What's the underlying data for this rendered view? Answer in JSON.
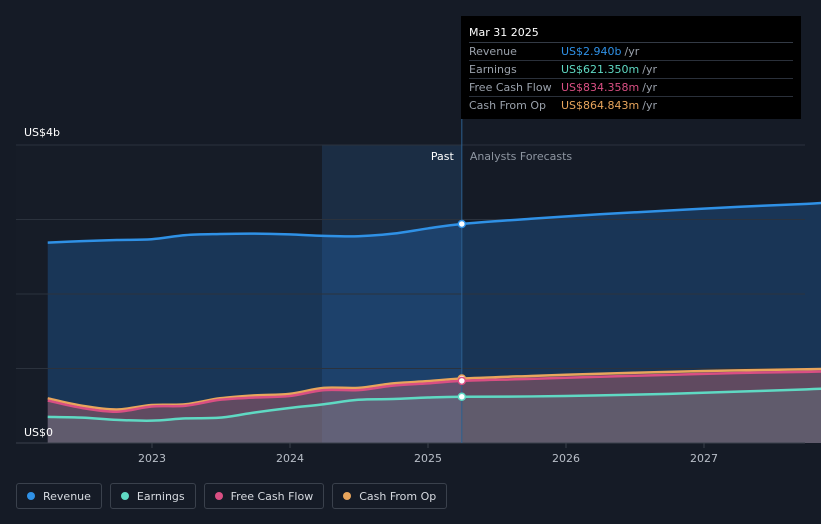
{
  "chart_data": {
    "type": "area",
    "y_axis": {
      "top_label": "US$4b",
      "bottom_label": "US$0",
      "ylim": [
        0,
        4000
      ]
    },
    "x_ticks": [
      "2023",
      "2024",
      "2025",
      "2026",
      "2027"
    ],
    "divider": {
      "past_label": "Past",
      "forecast_label": "Analysts Forecasts",
      "date": "2025-03-31"
    },
    "series": [
      {
        "name": "Revenue",
        "color": "#2f91e6",
        "points": [
          [
            "2022-03-31",
            2690
          ],
          [
            "2022-06-30",
            2710
          ],
          [
            "2022-09-30",
            2725
          ],
          [
            "2022-12-31",
            2735
          ],
          [
            "2023-03-31",
            2790
          ],
          [
            "2023-06-30",
            2805
          ],
          [
            "2023-09-30",
            2810
          ],
          [
            "2023-12-31",
            2800
          ],
          [
            "2024-03-31",
            2780
          ],
          [
            "2024-06-30",
            2775
          ],
          [
            "2024-09-30",
            2810
          ],
          [
            "2024-12-31",
            2880
          ],
          [
            "2025-03-31",
            2940
          ],
          [
            "2025-09-30",
            3010
          ],
          [
            "2026-03-31",
            3070
          ],
          [
            "2026-09-30",
            3120
          ],
          [
            "2027-03-31",
            3170
          ],
          [
            "2027-09-30",
            3210
          ],
          [
            "2027-12-31",
            3240
          ]
        ]
      },
      {
        "name": "Cash From Op",
        "color": "#e8a55c",
        "points": [
          [
            "2022-03-31",
            600
          ],
          [
            "2022-06-30",
            500
          ],
          [
            "2022-09-30",
            450
          ],
          [
            "2022-12-31",
            510
          ],
          [
            "2023-03-31",
            520
          ],
          [
            "2023-06-30",
            600
          ],
          [
            "2023-09-30",
            640
          ],
          [
            "2023-12-31",
            660
          ],
          [
            "2024-03-31",
            740
          ],
          [
            "2024-06-30",
            740
          ],
          [
            "2024-09-30",
            800
          ],
          [
            "2024-12-31",
            830
          ],
          [
            "2025-03-31",
            865
          ],
          [
            "2025-09-30",
            900
          ],
          [
            "2026-03-31",
            930
          ],
          [
            "2026-09-30",
            955
          ],
          [
            "2027-03-31",
            975
          ],
          [
            "2027-09-30",
            990
          ],
          [
            "2027-12-31",
            1000
          ]
        ]
      },
      {
        "name": "Free Cash Flow",
        "color": "#d94f83",
        "points": [
          [
            "2022-03-31",
            570
          ],
          [
            "2022-06-30",
            470
          ],
          [
            "2022-09-30",
            420
          ],
          [
            "2022-12-31",
            490
          ],
          [
            "2023-03-31",
            500
          ],
          [
            "2023-06-30",
            580
          ],
          [
            "2023-09-30",
            610
          ],
          [
            "2023-12-31",
            630
          ],
          [
            "2024-03-31",
            710
          ],
          [
            "2024-06-30",
            710
          ],
          [
            "2024-09-30",
            770
          ],
          [
            "2024-12-31",
            800
          ],
          [
            "2025-03-31",
            834
          ],
          [
            "2025-09-30",
            860
          ],
          [
            "2026-03-31",
            890
          ],
          [
            "2026-09-30",
            915
          ],
          [
            "2027-03-31",
            940
          ],
          [
            "2027-09-30",
            955
          ],
          [
            "2027-12-31",
            965
          ]
        ]
      },
      {
        "name": "Earnings",
        "color": "#5fd9c3",
        "points": [
          [
            "2022-03-31",
            350
          ],
          [
            "2022-06-30",
            340
          ],
          [
            "2022-09-30",
            310
          ],
          [
            "2022-12-31",
            300
          ],
          [
            "2023-03-31",
            330
          ],
          [
            "2023-06-30",
            340
          ],
          [
            "2023-09-30",
            410
          ],
          [
            "2023-12-31",
            470
          ],
          [
            "2024-03-31",
            520
          ],
          [
            "2024-06-30",
            580
          ],
          [
            "2024-09-30",
            590
          ],
          [
            "2024-12-31",
            610
          ],
          [
            "2025-03-31",
            621
          ],
          [
            "2025-09-30",
            625
          ],
          [
            "2026-03-31",
            640
          ],
          [
            "2026-09-30",
            660
          ],
          [
            "2027-03-31",
            690
          ],
          [
            "2027-09-30",
            720
          ],
          [
            "2027-12-31",
            740
          ]
        ]
      }
    ],
    "tooltip": {
      "date": "Mar 31 2025",
      "rows": [
        {
          "label": "Revenue",
          "value": "US$2.940b",
          "unit": "/yr",
          "color": "#2f91e6"
        },
        {
          "label": "Earnings",
          "value": "US$621.350m",
          "unit": "/yr",
          "color": "#5fd9c3"
        },
        {
          "label": "Free Cash Flow",
          "value": "US$834.358m",
          "unit": "/yr",
          "color": "#d94f83"
        },
        {
          "label": "Cash From Op",
          "value": "US$864.843m",
          "unit": "/yr",
          "color": "#e8a55c"
        }
      ]
    },
    "legend": [
      {
        "label": "Revenue",
        "color": "#2f91e6"
      },
      {
        "label": "Earnings",
        "color": "#5fd9c3"
      },
      {
        "label": "Free Cash Flow",
        "color": "#d94f83"
      },
      {
        "label": "Cash From Op",
        "color": "#e8a55c"
      }
    ]
  }
}
